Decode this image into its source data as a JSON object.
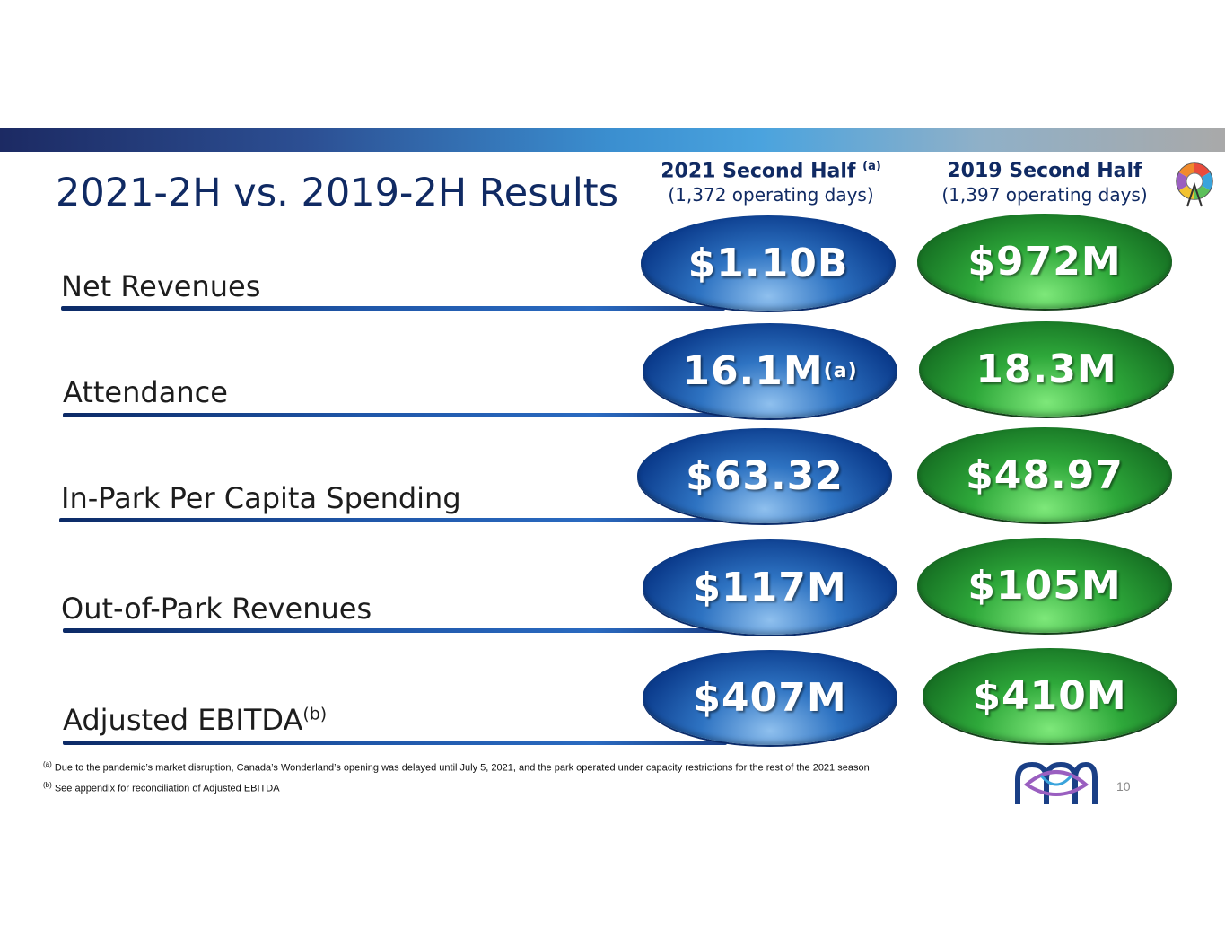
{
  "header": {
    "title": "2021-2H vs. 2019-2H Results",
    "col_2021": {
      "title": "2021 Second Half",
      "title_note": "(a)",
      "subtitle": "(1,372 operating days)"
    },
    "col_2019": {
      "title": "2019 Second Half",
      "subtitle": "(1,397 operating days)"
    }
  },
  "metrics": [
    {
      "label": "Net Revenues",
      "label_note": "",
      "value_2021": "$1.10B",
      "value_2021_note": "",
      "value_2019": "$972M"
    },
    {
      "label": "Attendance",
      "label_note": "",
      "value_2021": "16.1M",
      "value_2021_note": "(a)",
      "value_2019": "18.3M"
    },
    {
      "label": "In-Park Per Capita Spending",
      "label_note": "",
      "value_2021": "$63.32",
      "value_2021_note": "",
      "value_2019": "$48.97"
    },
    {
      "label": "Out-of-Park Revenues",
      "label_note": "",
      "value_2021": "$117M",
      "value_2021_note": "",
      "value_2019": "$105M"
    },
    {
      "label": "Adjusted EBITDA",
      "label_note": "(b)",
      "value_2021": "$407M",
      "value_2021_note": "",
      "value_2019": "$410M"
    }
  ],
  "footnotes": [
    {
      "marker": "(a)",
      "text": "Due to the pandemic’s market disruption, Canada’s Wonderland’s opening was delayed until July 5, 2021, and the park operated under capacity restrictions for the rest of the 2021 season"
    },
    {
      "marker": "(b)",
      "text": "See appendix for reconciliation of Adjusted EBITDA"
    }
  ],
  "page_number": "10",
  "icons": {
    "top_logo": "ferris-wheel-logo-icon",
    "bottom_logo": "coaster-loop-logo-icon"
  },
  "colors": {
    "navy": "#102a63",
    "blue_oval": "#0c3d8e",
    "green_oval": "#1a7a27"
  }
}
